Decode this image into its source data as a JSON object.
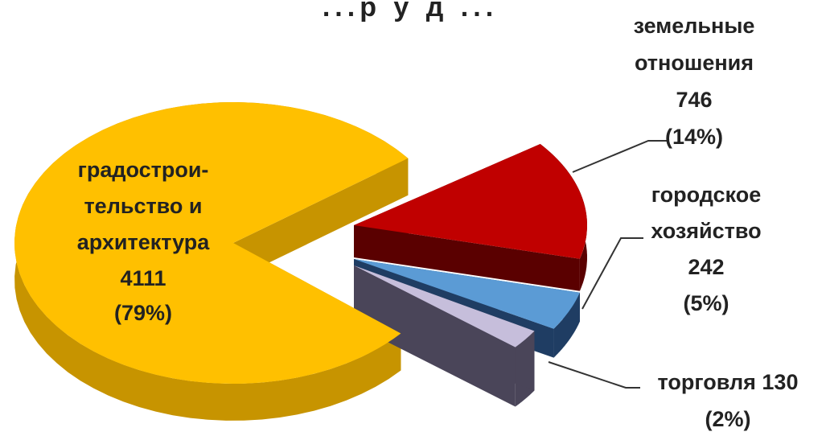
{
  "chart_data": {
    "type": "pie",
    "style": "3d-exploded",
    "title_fragment": "...р у д ...",
    "slices": [
      {
        "id": "urban",
        "label_lines": [
          "градострои-",
          "тельство и",
          "архитектура",
          "4111",
          "(79%)"
        ],
        "value": 4111,
        "percent": 79,
        "color": "#FFC000",
        "side_color": "#C79400"
      },
      {
        "id": "land",
        "label_lines": [
          "земельные",
          "отношения",
          "746",
          "(14%)"
        ],
        "value": 746,
        "percent": 14,
        "color": "#C00000",
        "side_color": "#5A0000"
      },
      {
        "id": "city",
        "label_lines": [
          "городское",
          "хозяйство",
          "242",
          "(5%)"
        ],
        "value": 242,
        "percent": 5,
        "color": "#5B9BD5",
        "side_color": "#1F3D63"
      },
      {
        "id": "trade",
        "label_lines": [
          "торговля 130",
          "(2%)"
        ],
        "value": 130,
        "percent": 2,
        "color": "#C6BEDB",
        "side_color": "#4A4559"
      }
    ]
  }
}
